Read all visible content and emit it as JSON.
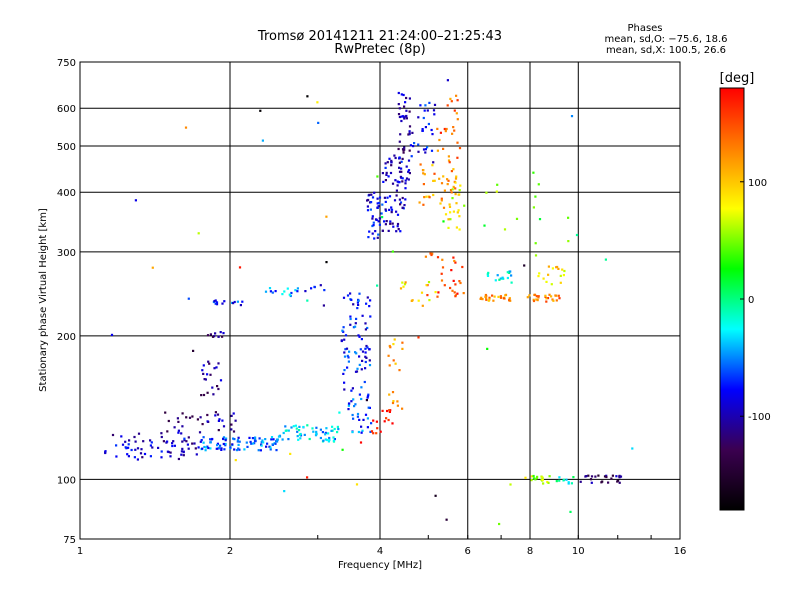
{
  "chart_data": {
    "type": "scatter",
    "title": "Tromsø 20141211 21:24:00–21:25:43",
    "subtitle": "RwPretec (8p)",
    "stats": {
      "heading": "Phases",
      "line1": "mean, sd,O: −75.6, 18.6",
      "line2": "mean, sd,X: 100.5, 26.6"
    },
    "xlabel": "Frequency [MHz]",
    "ylabel": "Stationary phase Virtual Height [km]",
    "x_scale": "log",
    "y_scale": "log",
    "xlim": [
      1,
      16
    ],
    "ylim": [
      75,
      750
    ],
    "x_ticks": [
      1,
      2,
      4,
      8,
      16
    ],
    "x_tick_labels": [
      "1",
      "2",
      "4",
      "8",
      "16"
    ],
    "x_minor_ticks": [
      6,
      10
    ],
    "x_minor_tick_labels": [
      "6",
      "10"
    ],
    "y_ticks": [
      75,
      100,
      200,
      300,
      400,
      500,
      600,
      750
    ],
    "y_tick_labels": [
      "75",
      "100",
      "200",
      "300",
      "400",
      "500",
      "600",
      "750"
    ],
    "grid": true,
    "colorbar": {
      "label": "[deg]",
      "min": -180,
      "max": 180,
      "ticks": [
        100,
        0,
        -100
      ],
      "tick_labels": [
        "100",
        "0",
        "-100"
      ],
      "colormap": [
        "#000000",
        "#3b0050",
        "#0000ff",
        "#00ffff",
        "#00ff00",
        "#ffff00",
        "#ff8000",
        "#ff0000"
      ]
    },
    "clusters": [
      {
        "f": [
          1.12,
          1.75
        ],
        "h": [
          110,
          125
        ],
        "phase": -95,
        "n": 70
      },
      {
        "f": [
          1.75,
          2.5
        ],
        "h": [
          115,
          123
        ],
        "phase": -60,
        "n": 90
      },
      {
        "f": [
          2.5,
          3.3
        ],
        "h": [
          120,
          130
        ],
        "phase": -35,
        "n": 60
      },
      {
        "f": [
          1.45,
          2.1
        ],
        "h": [
          125,
          140
        ],
        "phase": -110,
        "n": 35
      },
      {
        "f": [
          1.75,
          1.95
        ],
        "h": [
          150,
          180
        ],
        "phase": -110,
        "n": 20
      },
      {
        "f": [
          1.8,
          1.95
        ],
        "h": [
          198,
          204
        ],
        "phase": -115,
        "n": 10
      },
      {
        "f": [
          1.85,
          2.15
        ],
        "h": [
          232,
          238
        ],
        "phase": -70,
        "n": 14
      },
      {
        "f": [
          2.3,
          2.75
        ],
        "h": [
          242,
          252
        ],
        "phase": -50,
        "n": 14
      },
      {
        "f": [
          2.8,
          3.1
        ],
        "h": [
          248,
          256
        ],
        "phase": -75,
        "n": 6
      },
      {
        "f": [
          3.35,
          3.85
        ],
        "h": [
          150,
          250
        ],
        "phase": -75,
        "n": 80
      },
      {
        "f": [
          3.45,
          3.85
        ],
        "h": [
          125,
          150
        ],
        "phase": -60,
        "n": 30
      },
      {
        "f": [
          3.75,
          4.05
        ],
        "h": [
          320,
          400
        ],
        "phase": -85,
        "n": 40
      },
      {
        "f": [
          4.05,
          4.5
        ],
        "h": [
          330,
          480
        ],
        "phase": -95,
        "n": 70
      },
      {
        "f": [
          4.35,
          4.6
        ],
        "h": [
          420,
          650
        ],
        "phase": -100,
        "n": 50
      },
      {
        "f": [
          4.6,
          5.2
        ],
        "h": [
          460,
          620
        ],
        "phase": -80,
        "n": 30
      },
      {
        "f": [
          5.2,
          5.8
        ],
        "h": [
          460,
          640
        ],
        "phase": 140,
        "n": 25
      },
      {
        "f": [
          4.8,
          5.8
        ],
        "h": [
          370,
          460
        ],
        "phase": 120,
        "n": 40
      },
      {
        "f": [
          5.4,
          5.9
        ],
        "h": [
          330,
          420
        ],
        "phase": 80,
        "n": 20
      },
      {
        "f": [
          3.85,
          4.3
        ],
        "h": [
          125,
          140
        ],
        "phase": 175,
        "n": 16
      },
      {
        "f": [
          4.15,
          4.45
        ],
        "h": [
          140,
          200
        ],
        "phase": 110,
        "n": 18
      },
      {
        "f": [
          4.9,
          5.9
        ],
        "h": [
          240,
          300
        ],
        "phase": 150,
        "n": 30
      },
      {
        "f": [
          4.4,
          5.2
        ],
        "h": [
          230,
          260
        ],
        "phase": 90,
        "n": 14
      },
      {
        "f": [
          6.3,
          7.3
        ],
        "h": [
          236,
          244
        ],
        "phase": 120,
        "n": 26
      },
      {
        "f": [
          7.8,
          9.2
        ],
        "h": [
          236,
          244
        ],
        "phase": 130,
        "n": 26
      },
      {
        "f": [
          6.5,
          7.4
        ],
        "h": [
          255,
          275
        ],
        "phase": -20,
        "n": 16
      },
      {
        "f": [
          8.2,
          9.4
        ],
        "h": [
          255,
          280
        ],
        "phase": 90,
        "n": 16
      },
      {
        "f": [
          7.8,
          8.8
        ],
        "h": [
          98,
          102
        ],
        "phase": 60,
        "n": 18
      },
      {
        "f": [
          9.0,
          10.0
        ],
        "h": [
          98,
          102
        ],
        "phase": -20,
        "n": 10
      },
      {
        "f": [
          10.1,
          12.2
        ],
        "h": [
          98,
          102
        ],
        "phase": -120,
        "n": 25
      },
      {
        "f": [
          6.1,
          9.7
        ],
        "h": [
          290,
          420
        ],
        "phase": 40,
        "n": 14
      },
      {
        "f": [
          1.1,
          13.5
        ],
        "h": [
          80,
          700
        ],
        "phase": 0,
        "n": 45
      }
    ]
  }
}
